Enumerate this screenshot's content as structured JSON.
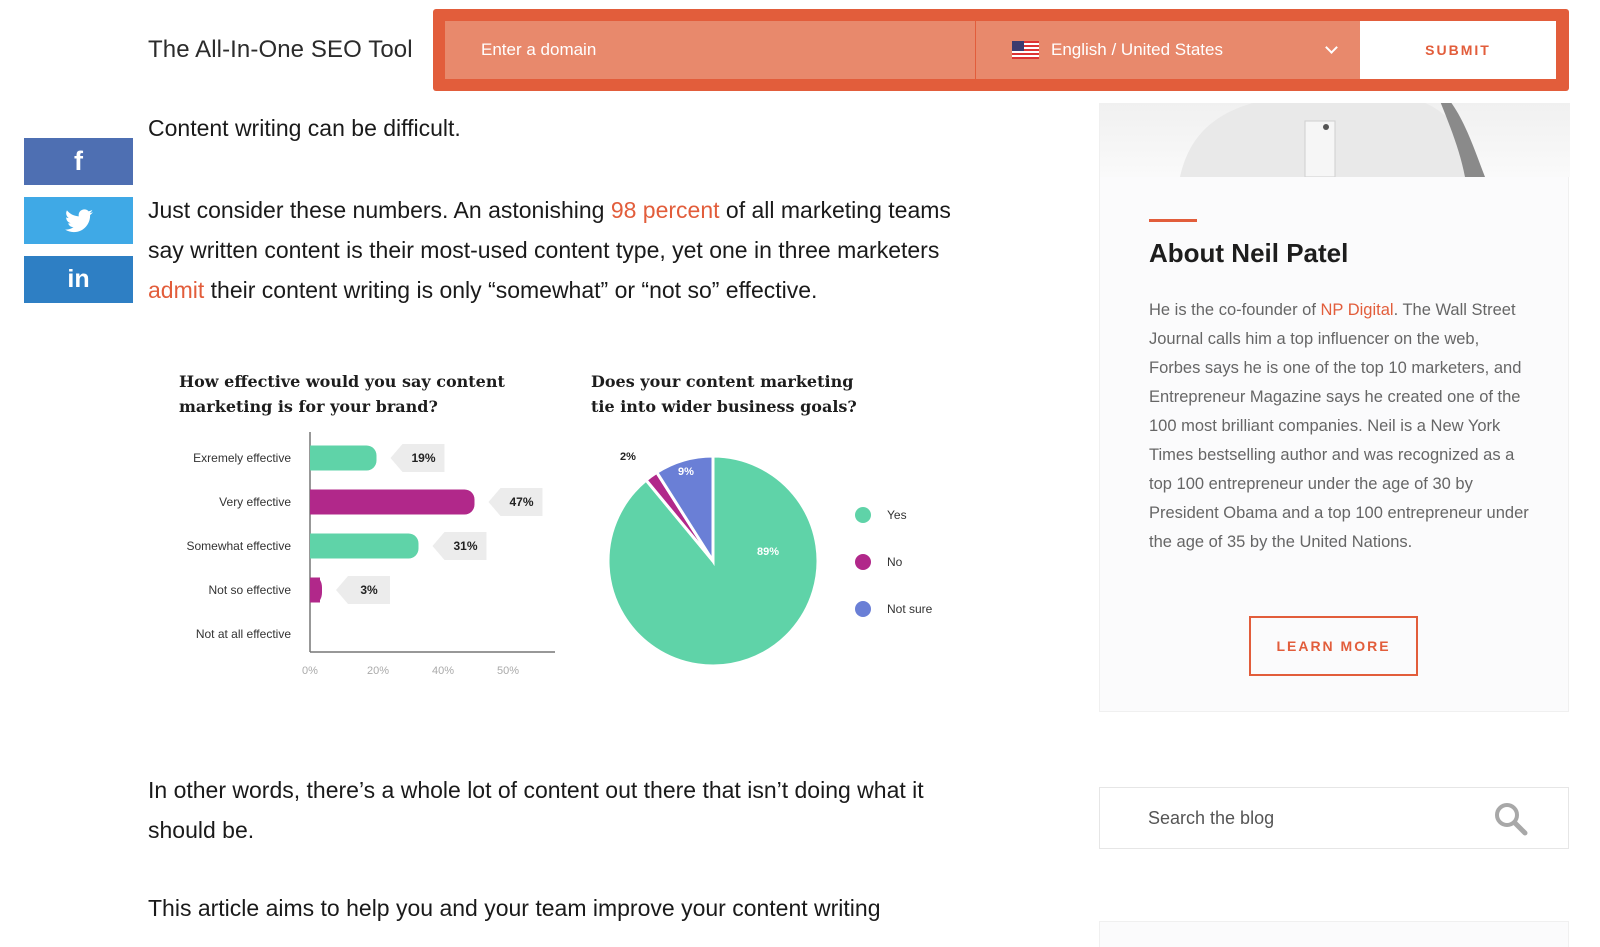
{
  "header": {
    "brand": "The All-In-One SEO Tool",
    "domain_placeholder": "Enter a domain",
    "language": "English / United States",
    "submit_label": "SUBMIT"
  },
  "social": {
    "facebook": "f",
    "twitter_icon": "twitter-bird",
    "linkedin": "in"
  },
  "article": {
    "p1": "Content writing can be difficult.",
    "p2_a": "Just consider these numbers. An astonishing ",
    "p2_link1": "98 percent",
    "p2_b": " of all marketing teams say written content is their most-used content type, yet one in three marketers ",
    "p2_link2": "admit",
    "p2_c": " their content writing is only “somewhat” or “not so” effective.",
    "p3": "In other words, there’s a whole lot of content out there that isn’t doing what it should be.",
    "p4": "This article aims to help you and your team improve your content writing"
  },
  "chart_data": [
    {
      "type": "bar",
      "title": "How effective would you say content marketing is for your brand?",
      "categories": [
        "Exremely effective",
        "Very effective",
        "Somewhat effective",
        "Not so effective",
        "Not at all effective"
      ],
      "values": [
        19,
        47,
        31,
        3,
        0
      ],
      "value_labels": [
        "19%",
        "47%",
        "31%",
        "3%",
        ""
      ],
      "colors": [
        "#5fd3a8",
        "#b1288a",
        "#5fd3a8",
        "#b1288a",
        "#5fd3a8"
      ],
      "xticks": [
        "0%",
        "20%",
        "40%",
        "50%"
      ],
      "xlim": [
        0,
        60
      ],
      "grid": false
    },
    {
      "type": "pie",
      "title": "Does your content marketing tie into wider business goals?",
      "labels": [
        "Yes",
        "No",
        "Not sure"
      ],
      "values": [
        89,
        2,
        9
      ],
      "value_labels": [
        "89%",
        "2%",
        "9%"
      ],
      "colors": [
        "#5fd3a8",
        "#b1288a",
        "#6a7fd6"
      ],
      "legend": "right"
    }
  ],
  "sidebar": {
    "about_title": "About Neil Patel",
    "about_a": "He is the co-founder of ",
    "about_link": "NP Digital",
    "about_b": ". The Wall Street Journal calls him a top influencer on the web, Forbes says he is one of the top 10 marketers, and Entrepreneur Magazine says he created one of the 100 most brilliant companies. Neil is a New York Times bestselling author and was recognized as a top 100 entrepreneur under the age of 30 by President Obama and a top 100 entrepreneur under the age of 35 by the United Nations.",
    "learn_more": "LEARN MORE",
    "search_placeholder": "Search the blog"
  },
  "colors": {
    "accent": "#e25d3b",
    "facebook": "#4e6fb2",
    "twitter": "#3fa9e6",
    "linkedin": "#2e7fc4"
  }
}
